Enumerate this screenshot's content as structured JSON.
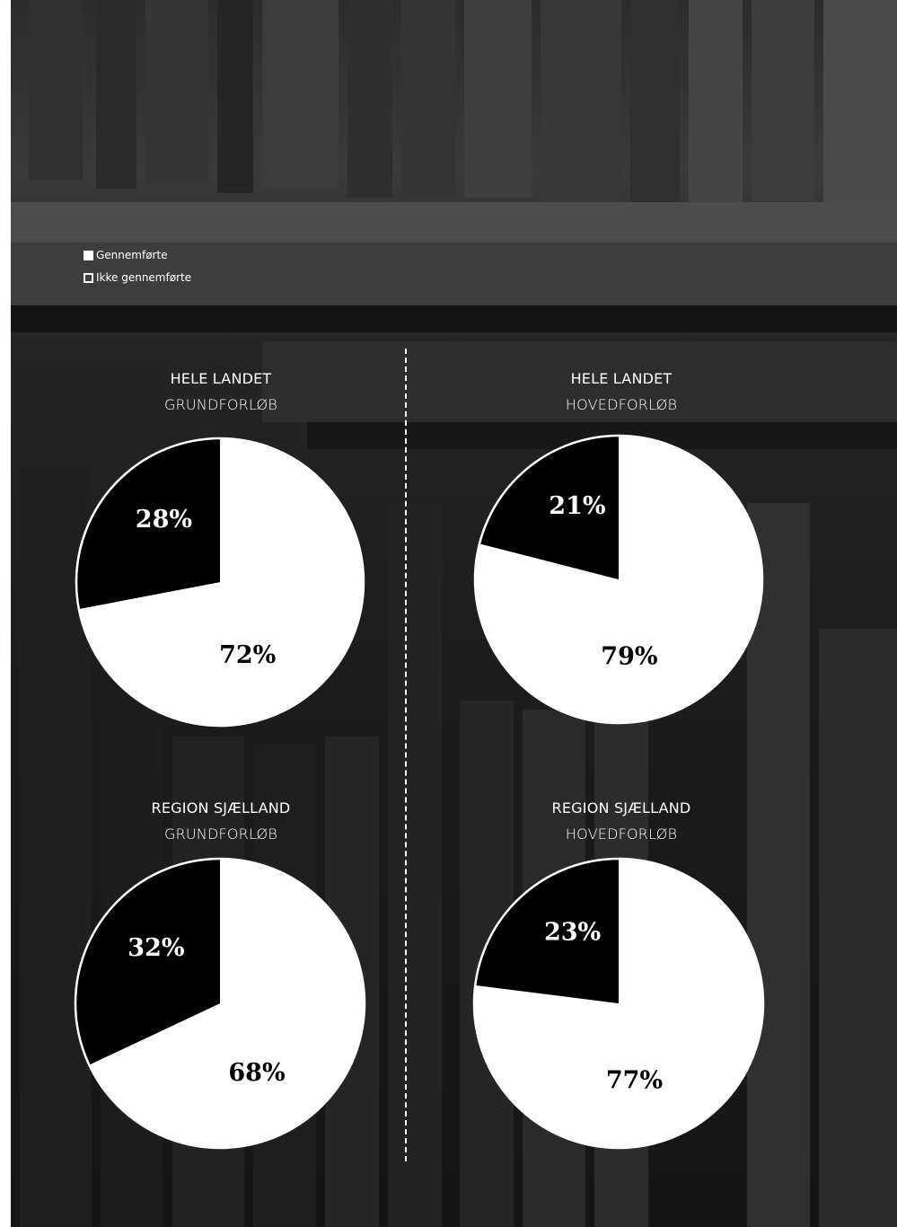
{
  "legend": {
    "completed_label": "Gennemførte",
    "not_completed_label": "Ikke gennemførte"
  },
  "colors": {
    "completed": "#ffffff",
    "not_completed": "#000000",
    "background": "#1e1e1e"
  },
  "chart_data": [
    {
      "type": "pie",
      "title": "HELE LANDET",
      "subtitle": "GRUNDFORLØB",
      "labels": [
        "Gennemførte",
        "Ikke gennemførte"
      ],
      "values": [
        72,
        28
      ],
      "value_labels": [
        "72%",
        "28%"
      ]
    },
    {
      "type": "pie",
      "title": "HELE LANDET",
      "subtitle": "HOVEDFORLØB",
      "labels": [
        "Gennemførte",
        "Ikke gennemførte"
      ],
      "values": [
        79,
        21
      ],
      "value_labels": [
        "79%",
        "21%"
      ]
    },
    {
      "type": "pie",
      "title": "REGION SJÆLLAND",
      "subtitle": "GRUNDFORLØB",
      "labels": [
        "Gennemførte",
        "Ikke gennemførte"
      ],
      "values": [
        68,
        32
      ],
      "value_labels": [
        "68%",
        "32%"
      ]
    },
    {
      "type": "pie",
      "title": "REGION SJÆLLAND",
      "subtitle": "HOVEDFORLØB",
      "labels": [
        "Gennemførte",
        "Ikke gennemførte"
      ],
      "values": [
        77,
        23
      ],
      "value_labels": [
        "77%",
        "23%"
      ]
    }
  ]
}
